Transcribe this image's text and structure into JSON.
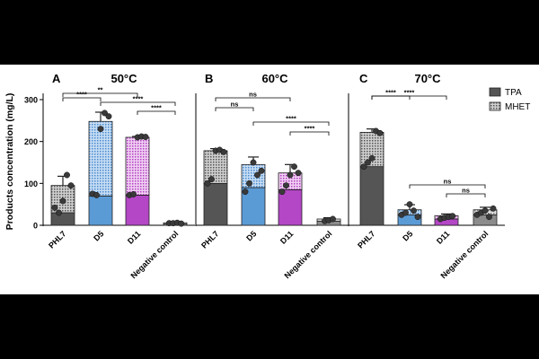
{
  "chart_data": {
    "type": "bar",
    "stacked": true,
    "ylabel": "Products concentration (mg/L)",
    "ylim": [
      0,
      300
    ],
    "yticks": [
      "0",
      "100",
      "200",
      "300"
    ],
    "categories": [
      "PHL7",
      "D5",
      "D11",
      "Negative control"
    ],
    "legend": {
      "position": "top-right",
      "entries": [
        {
          "name": "TPA",
          "swatch": "solid"
        },
        {
          "name": "MHET",
          "swatch": "dotted"
        }
      ]
    },
    "colors": {
      "PHL7": "#555555",
      "D5": "#5b9bd5",
      "D11": "#b347c5",
      "Negative control": "#8c8c8c"
    },
    "panels": [
      {
        "letter": "A",
        "title": "50°C",
        "TPA": [
          30,
          70,
          72,
          3
        ],
        "MHET": [
          65,
          178,
          138,
          3
        ],
        "total_error": [
          22,
          22,
          2,
          1
        ],
        "points": [
          [
            42,
            30,
            58,
            120,
            95
          ],
          [
            75,
            72,
            230,
            268,
            260
          ],
          [
            72,
            74,
            210,
            212,
            211
          ],
          [
            5,
            5,
            6,
            4
          ]
        ],
        "brackets": [
          {
            "from": 0,
            "to": 1,
            "label": "****"
          },
          {
            "from": 0,
            "to": 2,
            "label": "**"
          },
          {
            "from": 1,
            "to": 3,
            "label": "****"
          },
          {
            "from": 2,
            "to": 3,
            "label": "****"
          }
        ]
      },
      {
        "letter": "B",
        "title": "60°C",
        "TPA": [
          100,
          90,
          85,
          10
        ],
        "MHET": [
          78,
          55,
          40,
          5
        ],
        "total_error": [
          5,
          18,
          20,
          3
        ],
        "points": [
          [
            100,
            110,
            178,
            180,
            175
          ],
          [
            80,
            100,
            150,
            120,
            130
          ],
          [
            80,
            95,
            120,
            140,
            125
          ],
          [
            10,
            12,
            15
          ]
        ],
        "brackets": [
          {
            "from": 0,
            "to": 1,
            "label": "ns"
          },
          {
            "from": 0,
            "to": 2,
            "label": "ns"
          },
          {
            "from": 1,
            "to": 3,
            "label": "****"
          },
          {
            "from": 2,
            "to": 3,
            "label": "****"
          }
        ]
      },
      {
        "letter": "C",
        "title": "70°C",
        "TPA": [
          140,
          25,
          15,
          25
        ],
        "MHET": [
          82,
          12,
          8,
          12
        ],
        "total_error": [
          8,
          12,
          4,
          6
        ],
        "points": [
          [
            140,
            150,
            160,
            225,
            220
          ],
          [
            25,
            30,
            50,
            35,
            20
          ],
          [
            15,
            18,
            20,
            22
          ],
          [
            25,
            30,
            35,
            20,
            40
          ]
        ],
        "brackets": [
          {
            "from": 0,
            "to": 1,
            "label": "****"
          },
          {
            "from": 0,
            "to": 2,
            "label": "****"
          },
          {
            "from": 1,
            "to": 3,
            "label": "ns"
          },
          {
            "from": 2,
            "to": 3,
            "label": "ns"
          }
        ]
      }
    ]
  }
}
